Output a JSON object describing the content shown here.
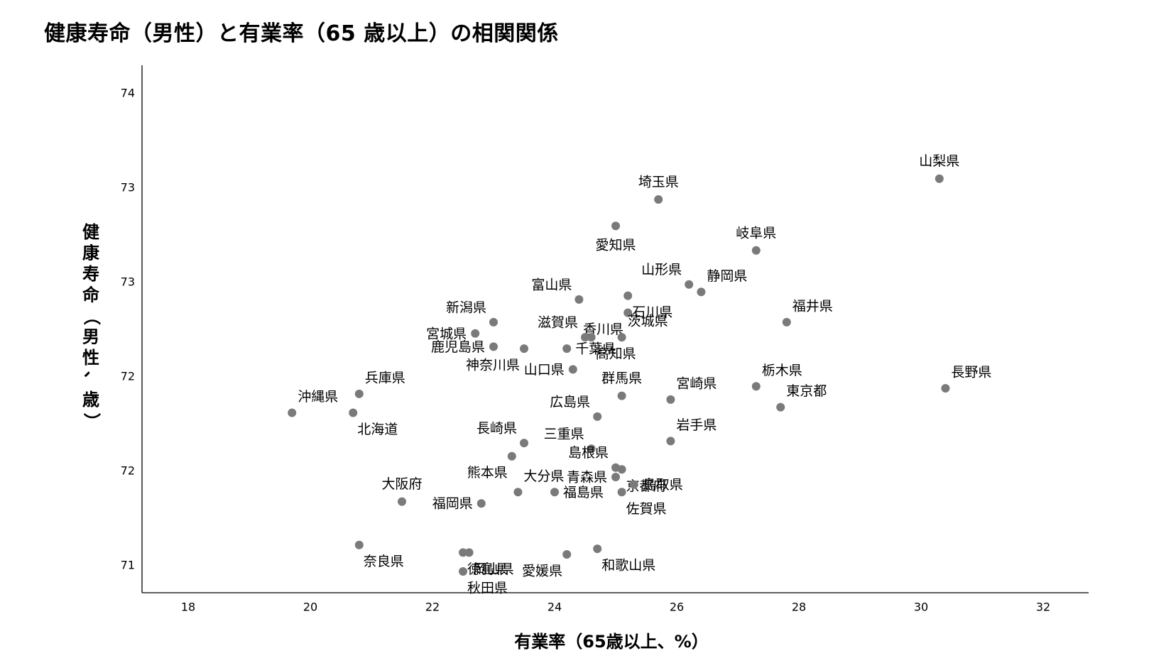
{
  "title": "健康寿命（男性）と有業率（65 歳以上）の相関関係",
  "chart_data": {
    "type": "scatter",
    "xlabel": "有業率（65歳以上、%）",
    "ylabel": "健康寿命（男性、歳）",
    "x_ticks": [
      "18",
      "20",
      "22",
      "24",
      "26",
      "28",
      "30",
      "32"
    ],
    "y_ticks": [
      "74",
      "73",
      "73",
      "72",
      "72",
      "71"
    ],
    "xlim": [
      17.25,
      32.8
    ],
    "point_color": "#7a7a7a",
    "grid": false,
    "points": [
      {
        "label": "山梨県",
        "x": 30.3,
        "y": 73.55
      },
      {
        "label": "埼玉県",
        "x": 25.7,
        "y": 73.44
      },
      {
        "label": "愛知県",
        "x": 25.0,
        "y": 73.3
      },
      {
        "label": "岐阜県",
        "x": 27.3,
        "y": 73.17
      },
      {
        "label": "山形県",
        "x": 26.2,
        "y": 72.99
      },
      {
        "label": "静岡県",
        "x": 26.4,
        "y": 72.95
      },
      {
        "label": "富山県",
        "x": 24.4,
        "y": 72.91
      },
      {
        "label": "石川県",
        "x": 25.2,
        "y": 72.93
      },
      {
        "label": "新潟県",
        "x": 23.0,
        "y": 72.79
      },
      {
        "label": "香川県",
        "x": 25.2,
        "y": 72.84
      },
      {
        "label": "福井県",
        "x": 27.8,
        "y": 72.79
      },
      {
        "label": "宮城県",
        "x": 22.7,
        "y": 72.73
      },
      {
        "label": "滋賀県",
        "x": 24.5,
        "y": 72.71
      },
      {
        "label": "茨城県",
        "x": 25.1,
        "y": 72.71
      },
      {
        "label": "鹿児島県",
        "x": 23.0,
        "y": 72.66
      },
      {
        "label": "神奈川県",
        "x": 23.5,
        "y": 72.65
      },
      {
        "label": "千葉県",
        "x": 24.2,
        "y": 72.65
      },
      {
        "label": "高知県",
        "x": 24.6,
        "y": 72.71
      },
      {
        "label": "山口県",
        "x": 24.3,
        "y": 72.54
      },
      {
        "label": "兵庫県",
        "x": 20.8,
        "y": 72.41
      },
      {
        "label": "群馬県",
        "x": 25.1,
        "y": 72.4
      },
      {
        "label": "宮崎県",
        "x": 25.9,
        "y": 72.38
      },
      {
        "label": "栃木県",
        "x": 27.3,
        "y": 72.45
      },
      {
        "label": "長野県",
        "x": 30.4,
        "y": 72.44
      },
      {
        "label": "東京都",
        "x": 27.7,
        "y": 72.34
      },
      {
        "label": "沖縄県",
        "x": 19.7,
        "y": 72.31
      },
      {
        "label": "北海道",
        "x": 20.7,
        "y": 72.31
      },
      {
        "label": "広島県",
        "x": 24.7,
        "y": 72.29
      },
      {
        "label": "長崎県",
        "x": 23.5,
        "y": 72.15
      },
      {
        "label": "三重県",
        "x": 24.6,
        "y": 72.12
      },
      {
        "label": "岩手県",
        "x": 25.9,
        "y": 72.16
      },
      {
        "label": "島根県",
        "x": 25.0,
        "y": 72.02
      },
      {
        "label": "京都府",
        "x": 25.1,
        "y": 72.01
      },
      {
        "label": "熊本県",
        "x": 23.3,
        "y": 72.08
      },
      {
        "label": "鳥取県",
        "x": 25.3,
        "y": 71.93
      },
      {
        "label": "青森県",
        "x": 25.0,
        "y": 71.97
      },
      {
        "label": "大分県",
        "x": 23.4,
        "y": 71.89
      },
      {
        "label": "福島県",
        "x": 24.0,
        "y": 71.89
      },
      {
        "label": "佐賀県",
        "x": 25.1,
        "y": 71.89
      },
      {
        "label": "大阪府",
        "x": 21.5,
        "y": 71.84
      },
      {
        "label": "福岡県",
        "x": 22.8,
        "y": 71.83
      },
      {
        "label": "奈良県",
        "x": 20.8,
        "y": 71.61
      },
      {
        "label": "徳島県",
        "x": 22.5,
        "y": 71.57
      },
      {
        "label": "和歌山県",
        "x": 24.7,
        "y": 71.59
      },
      {
        "label": "愛媛県",
        "x": 24.2,
        "y": 71.56
      },
      {
        "label": "秋田県",
        "x": 22.5,
        "y": 71.47
      },
      {
        "label": "岡山県",
        "x": 22.6,
        "y": 71.57
      }
    ]
  }
}
